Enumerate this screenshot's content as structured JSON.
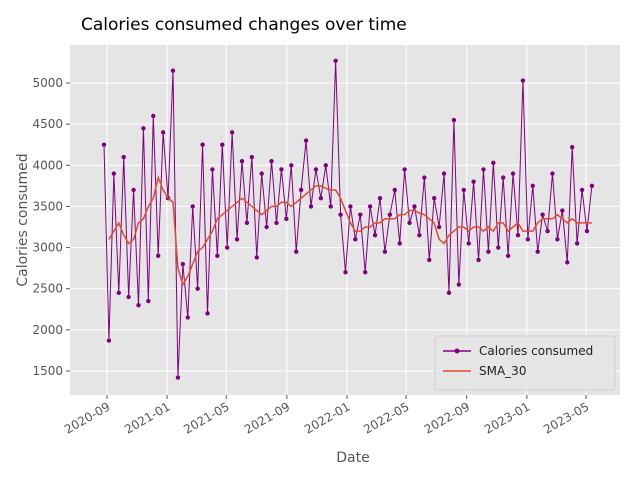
{
  "chart_data": {
    "type": "line",
    "title": "Calories consumed changes over time",
    "xlabel": "Date",
    "ylabel": "Calories consumed",
    "grid": true,
    "legend": "lower right",
    "xlim": [
      "2020-06-18",
      "2023-07-09"
    ],
    "ylim": [
      1208,
      5462
    ],
    "xticks": [
      {
        "value": "2020-09-01",
        "label": "2020-09"
      },
      {
        "value": "2021-01-01",
        "label": "2021-01"
      },
      {
        "value": "2021-05-01",
        "label": "2021-05"
      },
      {
        "value": "2021-09-01",
        "label": "2021-09"
      },
      {
        "value": "2022-01-01",
        "label": "2022-01"
      },
      {
        "value": "2022-05-01",
        "label": "2022-05"
      },
      {
        "value": "2022-09-01",
        "label": "2022-09"
      },
      {
        "value": "2023-01-01",
        "label": "2023-01"
      },
      {
        "value": "2023-05-01",
        "label": "2023-05"
      }
    ],
    "yticks": [
      1500,
      2000,
      2500,
      3000,
      3500,
      4000,
      4500,
      5000
    ],
    "x": [
      "2020-08-26",
      "2020-09-05",
      "2020-09-15",
      "2020-09-25",
      "2020-10-05",
      "2020-10-15",
      "2020-10-25",
      "2020-11-04",
      "2020-11-14",
      "2020-11-24",
      "2020-12-04",
      "2020-12-14",
      "2020-12-24",
      "2021-01-03",
      "2021-01-13",
      "2021-01-23",
      "2021-02-02",
      "2021-02-12",
      "2021-02-22",
      "2021-03-04",
      "2021-03-14",
      "2021-03-24",
      "2021-04-03",
      "2021-04-13",
      "2021-04-23",
      "2021-05-03",
      "2021-05-13",
      "2021-05-23",
      "2021-06-02",
      "2021-06-12",
      "2021-06-22",
      "2021-07-02",
      "2021-07-12",
      "2021-07-22",
      "2021-08-01",
      "2021-08-11",
      "2021-08-21",
      "2021-08-31",
      "2021-09-10",
      "2021-09-20",
      "2021-09-30",
      "2021-10-10",
      "2021-10-20",
      "2021-10-30",
      "2021-11-09",
      "2021-11-19",
      "2021-11-29",
      "2021-12-09",
      "2021-12-19",
      "2021-12-29",
      "2022-01-08",
      "2022-01-18",
      "2022-01-28",
      "2022-02-07",
      "2022-02-17",
      "2022-02-27",
      "2022-03-09",
      "2022-03-19",
      "2022-03-29",
      "2022-04-08",
      "2022-04-18",
      "2022-04-28",
      "2022-05-08",
      "2022-05-18",
      "2022-05-28",
      "2022-06-07",
      "2022-06-17",
      "2022-06-27",
      "2022-07-07",
      "2022-07-17",
      "2022-07-27",
      "2022-08-06",
      "2022-08-16",
      "2022-08-26",
      "2022-09-05",
      "2022-09-15",
      "2022-09-25",
      "2022-10-05",
      "2022-10-15",
      "2022-10-25",
      "2022-11-04",
      "2022-11-14",
      "2022-11-24",
      "2022-12-04",
      "2022-12-14",
      "2022-12-24",
      "2023-01-03",
      "2023-01-13",
      "2023-01-23",
      "2023-02-02",
      "2023-02-12",
      "2023-02-22",
      "2023-03-04",
      "2023-03-14",
      "2023-03-24",
      "2023-04-03",
      "2023-04-13",
      "2023-04-23",
      "2023-05-03",
      "2023-05-13"
    ],
    "series": [
      {
        "name": "Calories consumed",
        "color": "#800080",
        "marker": true,
        "values": [
          4250,
          1870,
          3900,
          2450,
          4100,
          2400,
          3700,
          2300,
          4450,
          2350,
          4600,
          2900,
          4400,
          3600,
          5150,
          1420,
          2800,
          2150,
          3500,
          2500,
          4250,
          2200,
          3950,
          2900,
          4250,
          3000,
          4400,
          3100,
          4050,
          3300,
          4100,
          2880,
          3900,
          3250,
          4050,
          3300,
          3950,
          3350,
          4000,
          2950,
          3700,
          4300,
          3500,
          3950,
          3600,
          4000,
          3500,
          5270,
          3400,
          2700,
          3500,
          3100,
          3400,
          2700,
          3500,
          3150,
          3600,
          2950,
          3400,
          3700,
          3050,
          3950,
          3300,
          3500,
          3150,
          3850,
          2850,
          3600,
          3250,
          3900,
          2450,
          4550,
          2550,
          3700,
          3050,
          3800,
          2850,
          3950,
          2950,
          4030,
          3000,
          3850,
          2900,
          3900,
          3150,
          5030,
          3100,
          3750,
          2950,
          3400,
          3200,
          3900,
          3100,
          3450,
          2820,
          4220,
          3050,
          3700,
          3200,
          3750
        ]
      },
      {
        "name": "SMA_30",
        "color": "#e24a33",
        "marker": false,
        "values": [
          null,
          3100,
          3200,
          3300,
          3150,
          3050,
          3100,
          3300,
          3350,
          3500,
          3600,
          3850,
          3700,
          3600,
          3550,
          2750,
          2550,
          2650,
          2800,
          2950,
          3000,
          3100,
          3200,
          3350,
          3400,
          3450,
          3500,
          3550,
          3600,
          3550,
          3500,
          3450,
          3400,
          3450,
          3500,
          3500,
          3550,
          3550,
          3500,
          3550,
          3600,
          3650,
          3700,
          3750,
          3750,
          3720,
          3700,
          3700,
          3600,
          3450,
          3300,
          3200,
          3200,
          3250,
          3250,
          3300,
          3300,
          3350,
          3350,
          3350,
          3400,
          3400,
          3450,
          3450,
          3420,
          3400,
          3350,
          3300,
          3100,
          3050,
          3150,
          3200,
          3250,
          3250,
          3200,
          3250,
          3250,
          3200,
          3250,
          3200,
          3300,
          3300,
          3200,
          3250,
          3300,
          3200,
          3200,
          3200,
          3300,
          3350,
          3350,
          3350,
          3400,
          3350,
          3300,
          3350,
          3300,
          3300,
          3300,
          3300
        ]
      }
    ]
  }
}
